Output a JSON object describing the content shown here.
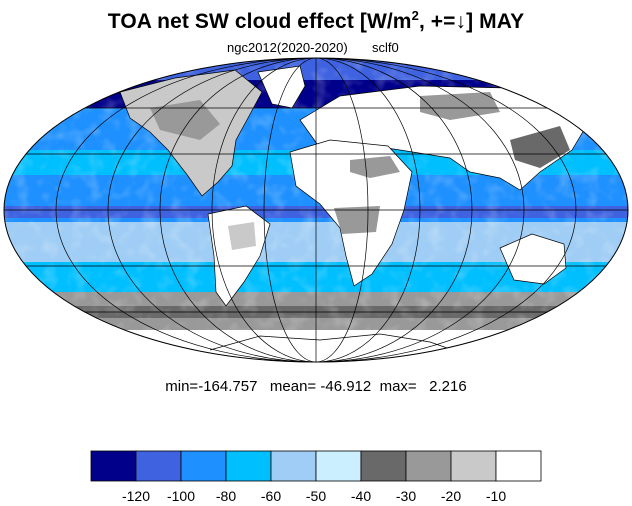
{
  "title": {
    "main": "TOA net SW cloud effect [W/m",
    "sup": "2",
    "rest": ", +=↓]  MAY"
  },
  "subtitle": {
    "left": "ngc2012(2020-2020)",
    "right": "sclf0"
  },
  "stats": {
    "text": "min=-164.757   mean= -46.912  max=   2.216"
  },
  "colorbar": {
    "colors": [
      "#00008b",
      "#3f62e0",
      "#1e90ff",
      "#00bfff",
      "#9fcdf5",
      "#ccefff",
      "#696969",
      "#999999",
      "#c9c9c9",
      "#ffffff"
    ],
    "tick_labels": [
      "-120",
      "-100",
      "-80",
      "-60",
      "-50",
      "-40",
      "-30",
      "-20",
      "-10"
    ]
  },
  "map": {
    "projection": "Mollweide",
    "ocean_base_color": "#1e90ff",
    "land_color": "#ffffff"
  }
}
